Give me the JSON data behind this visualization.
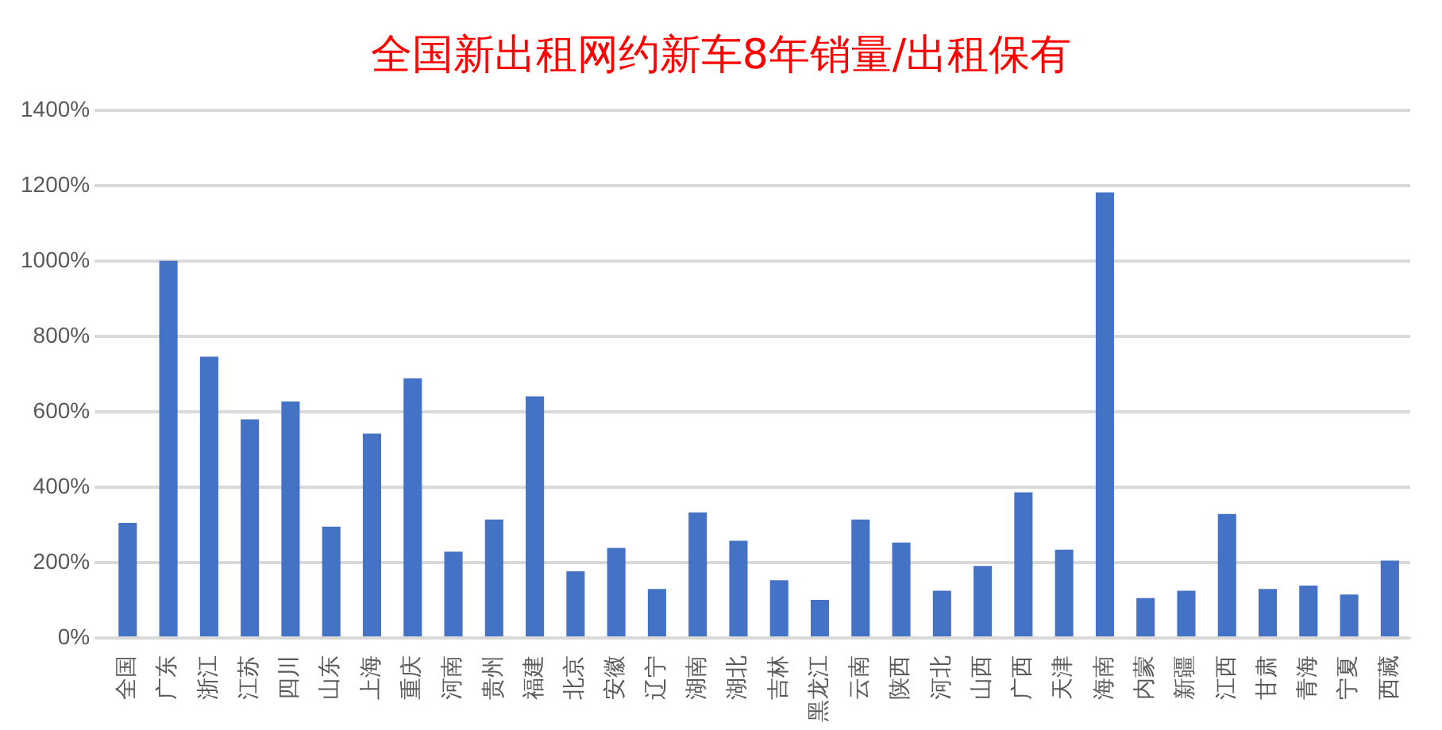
{
  "chart_data": {
    "type": "bar",
    "title": "全国新出租网约新车8年销量/出租保有",
    "categories": [
      "全国",
      "广东",
      "浙江",
      "江苏",
      "四川",
      "山东",
      "上海",
      "重庆",
      "河南",
      "贵州",
      "福建",
      "北京",
      "安徽",
      "辽宁",
      "湖南",
      "湖北",
      "吉林",
      "黑龙江",
      "云南",
      "陕西",
      "河北",
      "山西",
      "广西",
      "天津",
      "海南",
      "内蒙",
      "新疆",
      "江西",
      "甘肃",
      "青海",
      "宁夏",
      "西藏"
    ],
    "values": [
      305,
      1000,
      746,
      580,
      627,
      295,
      542,
      689,
      229,
      314,
      641,
      177,
      239,
      130,
      333,
      258,
      153,
      101,
      314,
      253,
      125,
      191,
      386,
      234,
      1182,
      106,
      125,
      329,
      130,
      139,
      115,
      205
    ],
    "color": "#4472c4",
    "ylim": [
      0,
      1400
    ],
    "yticks": [
      {
        "value": 0,
        "label": "0%"
      },
      {
        "value": 200,
        "label": "200%"
      },
      {
        "value": 400,
        "label": "400%"
      },
      {
        "value": 600,
        "label": "600%"
      },
      {
        "value": 800,
        "label": "800%"
      },
      {
        "value": 1000,
        "label": "1000%"
      },
      {
        "value": 1200,
        "label": "1200%"
      },
      {
        "value": 1400,
        "label": "1400%"
      }
    ],
    "grid": "y"
  }
}
